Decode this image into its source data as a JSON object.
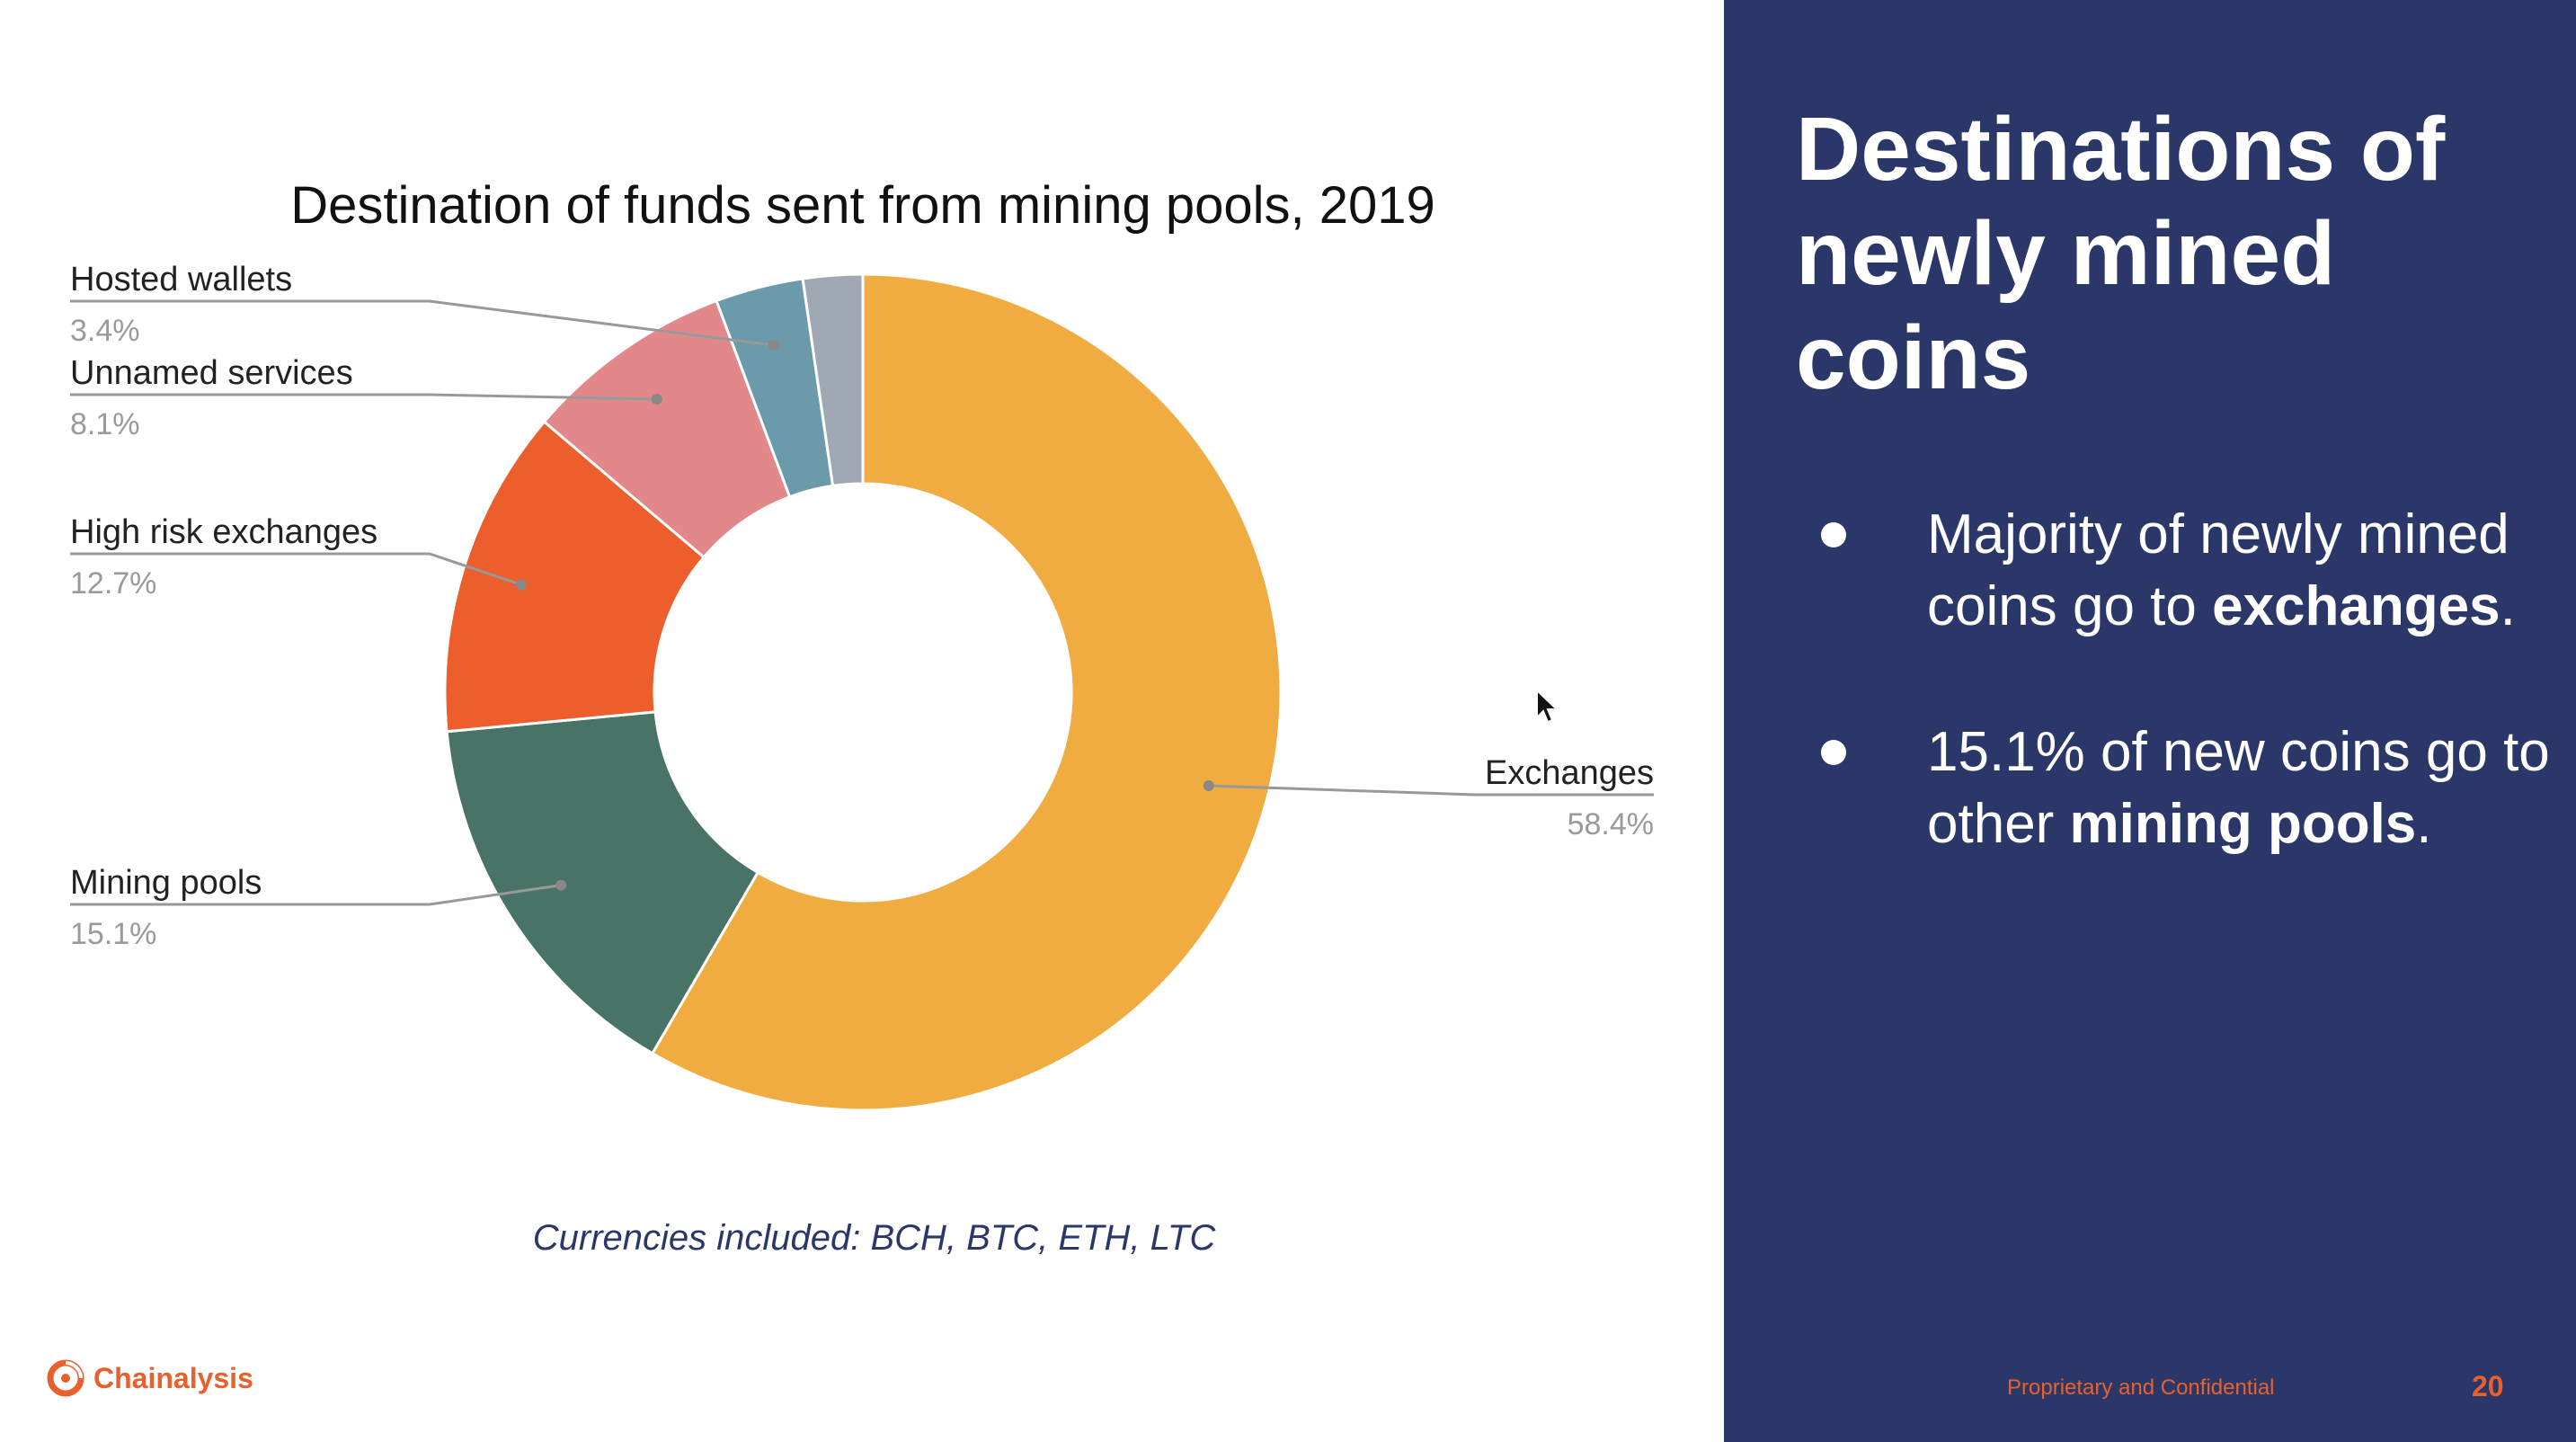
{
  "chart_data": {
    "type": "pie",
    "title": "Destination of funds sent from mining pools, 2019",
    "donut": true,
    "slices": [
      {
        "label": "Exchanges",
        "value": 58.4,
        "display": "58.4%",
        "color": "#f0ac40"
      },
      {
        "label": "Mining pools",
        "value": 15.1,
        "display": "15.1%",
        "color": "#487366"
      },
      {
        "label": "High risk exchanges",
        "value": 12.7,
        "display": "12.7%",
        "color": "#ec5f2c"
      },
      {
        "label": "Unnamed services",
        "value": 8.1,
        "display": "8.1%",
        "color": "#e3888a"
      },
      {
        "label": "Hosted wallets",
        "value": 3.4,
        "display": "3.4%",
        "color": "#6b9aaa"
      },
      {
        "label": "",
        "value": 2.3,
        "display": "",
        "color": "#a0a8b3"
      }
    ],
    "legend": "none"
  },
  "caption": "Currencies included: BCH, BTC, ETH, LTC",
  "brand": {
    "name": "Chainalysis",
    "icon": "chainalysis-logo-icon",
    "color": "#e8602c"
  },
  "panel": {
    "title": "Destinations of newly mined coins",
    "bullets": [
      {
        "pre": "Majority of newly mined coins go to ",
        "bold": "exchanges",
        "post": "."
      },
      {
        "pre": "15.1% of new coins go to other ",
        "bold": "mining pools",
        "post": "."
      }
    ],
    "footer": "Proprietary and Confidential",
    "page": "20",
    "background": "#2c3769"
  }
}
